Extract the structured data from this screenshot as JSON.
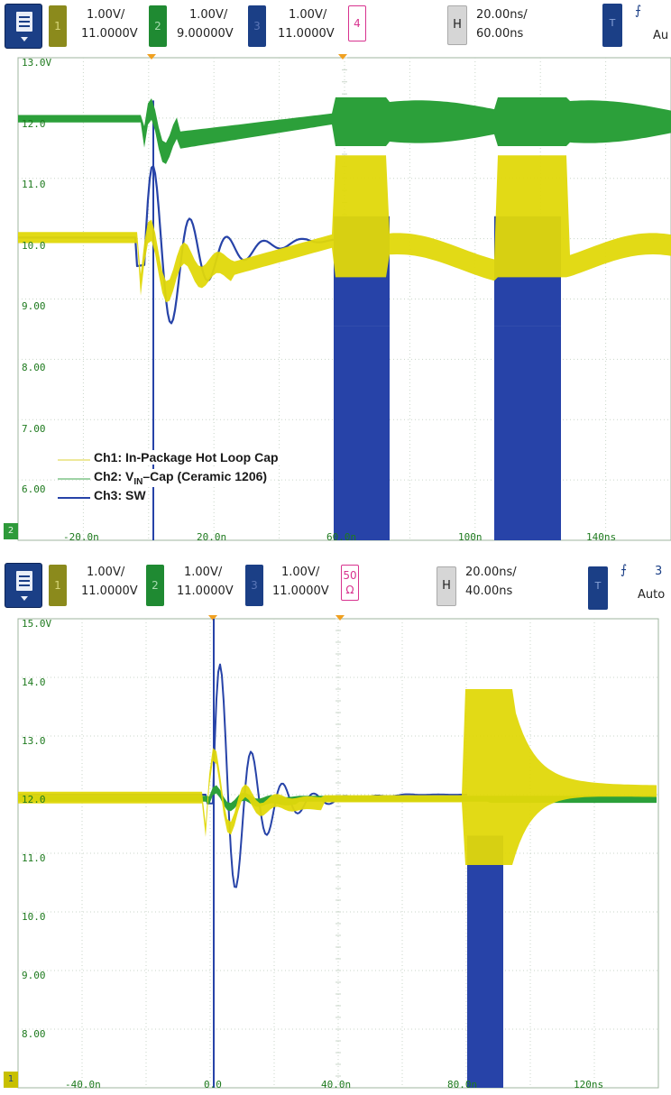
{
  "colors": {
    "ch1": "#e0d80a",
    "ch2": "#2ca03a",
    "ch3": "#2743a8",
    "grid": "#c9d6c9",
    "label": "#1e7a1e",
    "trigger": "#f0a020"
  },
  "top": {
    "ch1": {
      "num": "1",
      "scale": "1.00V/",
      "offset": "11.0000V"
    },
    "ch2": {
      "num": "2",
      "scale": "1.00V/",
      "offset": "9.00000V"
    },
    "ch3": {
      "num": "3",
      "scale": "1.00V/",
      "offset": "11.0000V"
    },
    "ch4": {
      "num": "4"
    },
    "horizontal": {
      "label": "H",
      "scale": "20.00ns/",
      "position": "60.00ns"
    },
    "trigger": {
      "label": "T",
      "mode": "Au"
    },
    "yticks": [
      "13.0V",
      "12.0",
      "11.0",
      "10.0",
      "9.00",
      "8.00",
      "7.00",
      "6.00"
    ],
    "xticks": [
      "-20.0n",
      "20.0n",
      "60.0n",
      "100n",
      "140ns"
    ],
    "ground_marker": "2",
    "legend": [
      {
        "text": "Ch1: In-Package Hot Loop Cap"
      },
      {
        "pre": "Ch2: V",
        "sub": "IN",
        "post": "–Cap (Ceramic 1206)"
      },
      {
        "text": "Ch3: SW"
      }
    ]
  },
  "bottom": {
    "ch1": {
      "num": "1",
      "scale": "1.00V/",
      "offset": "11.0000V"
    },
    "ch2": {
      "num": "2",
      "scale": "1.00V/",
      "offset": "11.0000V"
    },
    "ch3": {
      "num": "3",
      "scale": "1.00V/",
      "offset": "11.0000V"
    },
    "ch4": {
      "line1": "50",
      "line2": "Ω"
    },
    "horizontal": {
      "label": "H",
      "scale": "20.00ns/",
      "position": "40.00ns"
    },
    "trigger": {
      "label": "T",
      "level": "3",
      "mode": "Auto"
    },
    "yticks": [
      "15.0V",
      "14.0",
      "13.0",
      "12.0",
      "11.0",
      "10.0",
      "9.00",
      "8.00"
    ],
    "xticks": [
      "-40.0n",
      "0.0",
      "40.0n",
      "80.0n",
      "120ns"
    ],
    "ground_marker": "1"
  }
}
